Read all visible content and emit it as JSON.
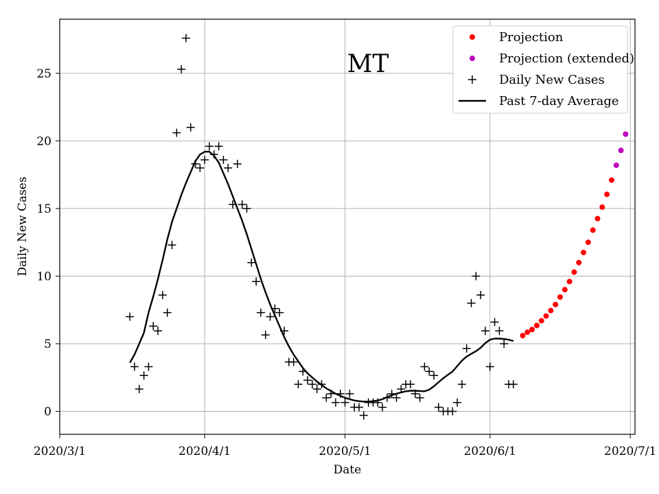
{
  "chart_data": {
    "type": "scatter",
    "title": "MT",
    "xlabel": "Date",
    "ylabel": "Daily New Cases",
    "grid": true,
    "legend_position": "top-right",
    "xlim": [
      "2020-03-01",
      "2020-07-02"
    ],
    "ylim": [
      -1.7,
      29
    ],
    "x_ticks": [
      {
        "date": "2020-03-01",
        "label": "2020/3/1"
      },
      {
        "date": "2020-04-01",
        "label": "2020/4/1"
      },
      {
        "date": "2020-05-01",
        "label": "2020/5/1"
      },
      {
        "date": "2020-06-01",
        "label": "2020/6/1"
      },
      {
        "date": "2020-07-01",
        "label": "2020/7/1"
      }
    ],
    "y_ticks": [
      0,
      5,
      10,
      15,
      20,
      25
    ],
    "series": [
      {
        "name": "Projection",
        "kind": "dots",
        "color": "#ff0000",
        "points": [
          [
            "2020-06-08",
            5.6
          ],
          [
            "2020-06-09",
            5.85
          ],
          [
            "2020-06-10",
            6.05
          ],
          [
            "2020-06-11",
            6.35
          ],
          [
            "2020-06-12",
            6.7
          ],
          [
            "2020-06-13",
            7.05
          ],
          [
            "2020-06-14",
            7.45
          ],
          [
            "2020-06-15",
            7.9
          ],
          [
            "2020-06-16",
            8.45
          ],
          [
            "2020-06-17",
            9.0
          ],
          [
            "2020-06-18",
            9.6
          ],
          [
            "2020-06-19",
            10.3
          ],
          [
            "2020-06-20",
            11.0
          ],
          [
            "2020-06-21",
            11.75
          ],
          [
            "2020-06-22",
            12.5
          ],
          [
            "2020-06-23",
            13.4
          ],
          [
            "2020-06-24",
            14.25
          ],
          [
            "2020-06-25",
            15.1
          ],
          [
            "2020-06-26",
            16.05
          ],
          [
            "2020-06-27",
            17.1
          ]
        ]
      },
      {
        "name": "Projection (extended)",
        "kind": "dots",
        "color": "#bf00bf",
        "points": [
          [
            "2020-06-28",
            18.2
          ],
          [
            "2020-06-29",
            19.3
          ],
          [
            "2020-06-30",
            20.5
          ]
        ]
      },
      {
        "name": "Daily New Cases",
        "kind": "plus",
        "color": "#000000",
        "points": [
          [
            "2020-03-16",
            7.0
          ],
          [
            "2020-03-17",
            3.3
          ],
          [
            "2020-03-18",
            1.65
          ],
          [
            "2020-03-19",
            2.65
          ],
          [
            "2020-03-20",
            3.3
          ],
          [
            "2020-03-21",
            6.3
          ],
          [
            "2020-03-22",
            5.95
          ],
          [
            "2020-03-23",
            8.6
          ],
          [
            "2020-03-24",
            7.3
          ],
          [
            "2020-03-25",
            12.3
          ],
          [
            "2020-03-26",
            20.6
          ],
          [
            "2020-03-27",
            25.3
          ],
          [
            "2020-03-28",
            27.6
          ],
          [
            "2020-03-29",
            21.0
          ],
          [
            "2020-03-30",
            18.3
          ],
          [
            "2020-03-31",
            18.0
          ],
          [
            "2020-04-01",
            18.6
          ],
          [
            "2020-04-02",
            19.6
          ],
          [
            "2020-04-03",
            19.0
          ],
          [
            "2020-04-04",
            19.6
          ],
          [
            "2020-04-05",
            18.6
          ],
          [
            "2020-04-06",
            18.0
          ],
          [
            "2020-04-07",
            15.3
          ],
          [
            "2020-04-08",
            18.3
          ],
          [
            "2020-04-09",
            15.3
          ],
          [
            "2020-04-10",
            15.0
          ],
          [
            "2020-04-11",
            11.0
          ],
          [
            "2020-04-12",
            9.6
          ],
          [
            "2020-04-13",
            7.3
          ],
          [
            "2020-04-14",
            5.65
          ],
          [
            "2020-04-15",
            7.0
          ],
          [
            "2020-04-16",
            7.6
          ],
          [
            "2020-04-17",
            7.3
          ],
          [
            "2020-04-18",
            5.95
          ],
          [
            "2020-04-19",
            3.65
          ],
          [
            "2020-04-20",
            3.65
          ],
          [
            "2020-04-21",
            2.0
          ],
          [
            "2020-04-22",
            2.95
          ],
          [
            "2020-04-23",
            2.3
          ],
          [
            "2020-04-24",
            2.0
          ],
          [
            "2020-04-25",
            1.65
          ],
          [
            "2020-04-26",
            2.0
          ],
          [
            "2020-04-27",
            1.0
          ],
          [
            "2020-04-28",
            1.3
          ],
          [
            "2020-04-29",
            0.65
          ],
          [
            "2020-04-30",
            1.3
          ],
          [
            "2020-05-01",
            0.65
          ],
          [
            "2020-05-02",
            1.3
          ],
          [
            "2020-05-03",
            0.3
          ],
          [
            "2020-05-04",
            0.3
          ],
          [
            "2020-05-05",
            -0.3
          ],
          [
            "2020-05-06",
            0.65
          ],
          [
            "2020-05-07",
            0.65
          ],
          [
            "2020-05-08",
            0.65
          ],
          [
            "2020-05-09",
            0.3
          ],
          [
            "2020-05-10",
            1.0
          ],
          [
            "2020-05-11",
            1.3
          ],
          [
            "2020-05-12",
            1.0
          ],
          [
            "2020-05-13",
            1.65
          ],
          [
            "2020-05-14",
            2.0
          ],
          [
            "2020-05-15",
            2.0
          ],
          [
            "2020-05-16",
            1.3
          ],
          [
            "2020-05-17",
            1.0
          ],
          [
            "2020-05-18",
            3.3
          ],
          [
            "2020-05-19",
            2.95
          ],
          [
            "2020-05-20",
            2.65
          ],
          [
            "2020-05-21",
            0.3
          ],
          [
            "2020-05-22",
            0.0
          ],
          [
            "2020-05-23",
            0.0
          ],
          [
            "2020-05-24",
            0.0
          ],
          [
            "2020-05-25",
            0.65
          ],
          [
            "2020-05-26",
            2.0
          ],
          [
            "2020-05-27",
            4.65
          ],
          [
            "2020-05-28",
            8.0
          ],
          [
            "2020-05-29",
            10.0
          ],
          [
            "2020-05-30",
            8.6
          ],
          [
            "2020-05-31",
            5.95
          ],
          [
            "2020-06-01",
            3.3
          ],
          [
            "2020-06-02",
            6.6
          ],
          [
            "2020-06-03",
            5.95
          ],
          [
            "2020-06-04",
            5.0
          ],
          [
            "2020-06-05",
            2.0
          ],
          [
            "2020-06-06",
            2.0
          ]
        ]
      },
      {
        "name": "Past 7-day Average",
        "kind": "line",
        "color": "#000000",
        "points": [
          [
            "2020-03-16",
            3.6
          ],
          [
            "2020-03-17",
            4.2
          ],
          [
            "2020-03-18",
            5.0
          ],
          [
            "2020-03-19",
            5.8
          ],
          [
            "2020-03-20",
            7.3
          ],
          [
            "2020-03-21",
            8.5
          ],
          [
            "2020-03-22",
            9.8
          ],
          [
            "2020-03-23",
            11.2
          ],
          [
            "2020-03-24",
            12.7
          ],
          [
            "2020-03-25",
            14.0
          ],
          [
            "2020-03-26",
            15.0
          ],
          [
            "2020-03-27",
            16.0
          ],
          [
            "2020-03-28",
            16.9
          ],
          [
            "2020-03-29",
            17.7
          ],
          [
            "2020-03-30",
            18.5
          ],
          [
            "2020-03-31",
            19.0
          ],
          [
            "2020-04-01",
            19.2
          ],
          [
            "2020-04-02",
            19.2
          ],
          [
            "2020-04-03",
            18.9
          ],
          [
            "2020-04-04",
            18.4
          ],
          [
            "2020-04-05",
            17.6
          ],
          [
            "2020-04-06",
            16.8
          ],
          [
            "2020-04-07",
            15.9
          ],
          [
            "2020-04-08",
            15.0
          ],
          [
            "2020-04-09",
            14.1
          ],
          [
            "2020-04-10",
            13.1
          ],
          [
            "2020-04-11",
            12.0
          ],
          [
            "2020-04-12",
            10.9
          ],
          [
            "2020-04-13",
            9.8
          ],
          [
            "2020-04-14",
            8.8
          ],
          [
            "2020-04-15",
            7.9
          ],
          [
            "2020-04-16",
            7.1
          ],
          [
            "2020-04-17",
            6.3
          ],
          [
            "2020-04-18",
            5.5
          ],
          [
            "2020-04-19",
            4.8
          ],
          [
            "2020-04-20",
            4.2
          ],
          [
            "2020-04-21",
            3.7
          ],
          [
            "2020-04-22",
            3.2
          ],
          [
            "2020-04-23",
            2.8
          ],
          [
            "2020-04-24",
            2.5
          ],
          [
            "2020-04-25",
            2.2
          ],
          [
            "2020-04-26",
            1.95
          ],
          [
            "2020-04-27",
            1.7
          ],
          [
            "2020-04-28",
            1.5
          ],
          [
            "2020-04-29",
            1.3
          ],
          [
            "2020-04-30",
            1.15
          ],
          [
            "2020-05-01",
            1.0
          ],
          [
            "2020-05-02",
            0.9
          ],
          [
            "2020-05-03",
            0.8
          ],
          [
            "2020-05-04",
            0.75
          ],
          [
            "2020-05-05",
            0.72
          ],
          [
            "2020-05-06",
            0.72
          ],
          [
            "2020-05-07",
            0.75
          ],
          [
            "2020-05-08",
            0.8
          ],
          [
            "2020-05-09",
            0.9
          ],
          [
            "2020-05-10",
            1.05
          ],
          [
            "2020-05-11",
            1.2
          ],
          [
            "2020-05-12",
            1.3
          ],
          [
            "2020-05-13",
            1.4
          ],
          [
            "2020-05-14",
            1.48
          ],
          [
            "2020-05-15",
            1.52
          ],
          [
            "2020-05-16",
            1.52
          ],
          [
            "2020-05-17",
            1.5
          ],
          [
            "2020-05-18",
            1.48
          ],
          [
            "2020-05-19",
            1.6
          ],
          [
            "2020-05-20",
            1.85
          ],
          [
            "2020-05-21",
            2.15
          ],
          [
            "2020-05-22",
            2.45
          ],
          [
            "2020-05-23",
            2.7
          ],
          [
            "2020-05-24",
            2.95
          ],
          [
            "2020-05-25",
            3.35
          ],
          [
            "2020-05-26",
            3.75
          ],
          [
            "2020-05-27",
            4.05
          ],
          [
            "2020-05-28",
            4.25
          ],
          [
            "2020-05-29",
            4.45
          ],
          [
            "2020-05-30",
            4.7
          ],
          [
            "2020-05-31",
            5.05
          ],
          [
            "2020-06-01",
            5.3
          ],
          [
            "2020-06-02",
            5.38
          ],
          [
            "2020-06-03",
            5.38
          ],
          [
            "2020-06-04",
            5.35
          ],
          [
            "2020-06-05",
            5.3
          ],
          [
            "2020-06-06",
            5.2
          ]
        ]
      }
    ],
    "legend": [
      {
        "label": "Projection",
        "kind": "dot",
        "color": "#ff0000"
      },
      {
        "label": "Projection (extended)",
        "kind": "dot",
        "color": "#bf00bf"
      },
      {
        "label": "Daily New Cases",
        "kind": "plus",
        "color": "#000000"
      },
      {
        "label": "Past 7-day Average",
        "kind": "line",
        "color": "#000000"
      }
    ]
  }
}
